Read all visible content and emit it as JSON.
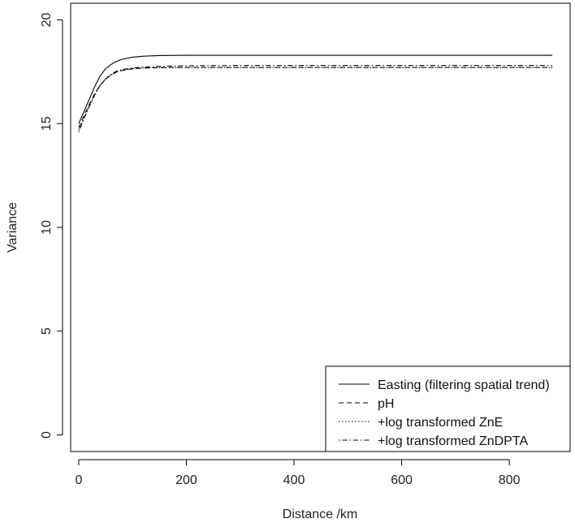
{
  "chart_data": {
    "type": "line",
    "xlabel": "Distance /km",
    "ylabel": "Variance",
    "xlim": [
      -15,
      913
    ],
    "ylim": [
      -0.8,
      20.8
    ],
    "xticks": [
      0,
      200,
      400,
      600,
      800
    ],
    "xtick_labels": [
      "0",
      "200",
      "400",
      "600",
      "800"
    ],
    "yticks": [
      0,
      5,
      10,
      15,
      20
    ],
    "ytick_labels": [
      "0",
      "5",
      "10",
      "15",
      "20"
    ],
    "grid": false,
    "legend_position": "bottom-right",
    "series": [
      {
        "name": "Easting (filtering spatial trend)",
        "dash": "solid",
        "x": [
          0,
          10,
          20,
          30,
          40,
          50,
          60,
          70,
          80,
          100,
          120,
          150,
          200,
          300,
          500,
          700,
          880
        ],
        "y": [
          15.0,
          15.6,
          16.2,
          16.8,
          17.3,
          17.65,
          17.85,
          18.0,
          18.1,
          18.2,
          18.25,
          18.28,
          18.29,
          18.29,
          18.29,
          18.29,
          18.29
        ]
      },
      {
        "name": "pH",
        "dash": "dashed",
        "x": [
          0,
          10,
          20,
          30,
          40,
          50,
          60,
          70,
          80,
          100,
          120,
          150,
          200,
          300,
          500,
          700,
          880
        ],
        "y": [
          14.8,
          15.4,
          15.95,
          16.45,
          16.85,
          17.15,
          17.35,
          17.48,
          17.56,
          17.64,
          17.68,
          17.7,
          17.71,
          17.71,
          17.71,
          17.71,
          17.71
        ]
      },
      {
        "name": "+log transformed ZnE",
        "dash": "dotted",
        "x": [
          0,
          10,
          20,
          30,
          40,
          50,
          60,
          70,
          80,
          100,
          120,
          150,
          200,
          300,
          500,
          700,
          880
        ],
        "y": [
          14.7,
          15.3,
          15.9,
          16.4,
          16.85,
          17.15,
          17.35,
          17.5,
          17.58,
          17.65,
          17.68,
          17.69,
          17.7,
          17.7,
          17.7,
          17.7,
          17.7
        ]
      },
      {
        "name": "+log transformed ZnDPTA",
        "dash": "dotdash",
        "x": [
          0,
          10,
          20,
          30,
          40,
          50,
          60,
          70,
          80,
          100,
          120,
          150,
          200,
          300,
          500,
          700,
          880
        ],
        "y": [
          14.6,
          15.25,
          15.85,
          16.4,
          16.85,
          17.15,
          17.38,
          17.52,
          17.6,
          17.68,
          17.72,
          17.76,
          17.79,
          17.8,
          17.8,
          17.8,
          17.8
        ]
      }
    ]
  }
}
